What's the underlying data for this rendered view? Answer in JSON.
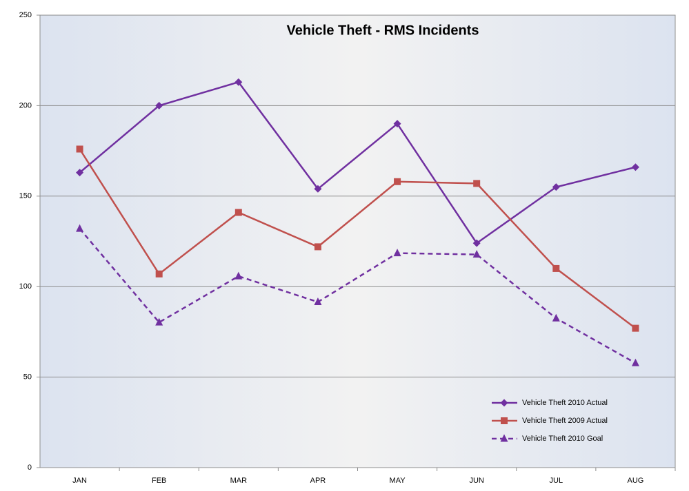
{
  "chart_data": {
    "type": "line",
    "title": "Vehicle Theft - RMS Incidents",
    "categories": [
      "JAN",
      "FEB",
      "MAR",
      "APR",
      "MAY",
      "JUN",
      "JUL",
      "AUG"
    ],
    "series": [
      {
        "name": "Vehicle Theft 2010 Actual",
        "color": "#7030a0",
        "marker": "diamond",
        "dashed": false,
        "values": [
          163,
          200,
          213,
          154,
          190,
          124,
          155,
          166
        ]
      },
      {
        "name": "Vehicle Theft 2009 Actual",
        "color": "#c0504d",
        "marker": "square",
        "dashed": false,
        "values": [
          176,
          107,
          141,
          122,
          158,
          157,
          110,
          77
        ]
      },
      {
        "name": "Vehicle Theft 2010 Goal",
        "color": "#7030a0",
        "marker": "triangle",
        "dashed": true,
        "values": [
          132,
          80.25,
          105.75,
          91.5,
          118.5,
          117.75,
          82.5,
          57.75
        ]
      }
    ],
    "ylim": [
      0,
      250
    ],
    "yticks": [
      0,
      50,
      100,
      150,
      200,
      250
    ],
    "grid": true,
    "legend": "lower right"
  }
}
